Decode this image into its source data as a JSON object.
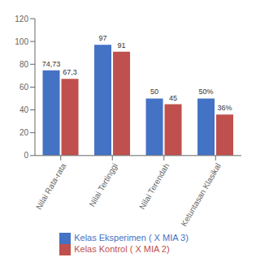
{
  "chart_data": {
    "type": "bar",
    "categories": [
      "Nilai Rata-rata",
      "Nilai Tertinggi",
      "Nilai Terendah",
      "Ketuntasan Klasikal"
    ],
    "series": [
      {
        "name": "Kelas Eksperimen ( X MIA 3)",
        "color": "#4472C4",
        "values": [
          74.73,
          97,
          50,
          50
        ],
        "value_labels": [
          "74,73",
          "97",
          "50",
          "50%"
        ]
      },
      {
        "name": "Kelas Kontrol ( X MIA 2)",
        "color": "#C0504D",
        "values": [
          67.3,
          91,
          45,
          36
        ],
        "value_labels": [
          "67,3",
          "91",
          "45",
          "36%"
        ]
      }
    ],
    "ylim": [
      0,
      120
    ],
    "yticks": [
      0,
      20,
      40,
      60,
      80,
      100,
      120
    ],
    "data_labels": true,
    "legend": "bottom",
    "grid": false
  }
}
